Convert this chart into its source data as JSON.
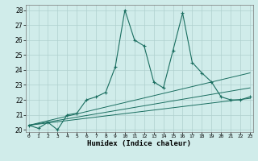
{
  "xlabel": "Humidex (Indice chaleur)",
  "xlim": [
    -0.3,
    23.3
  ],
  "ylim": [
    19.85,
    28.35
  ],
  "yticks": [
    20,
    21,
    22,
    23,
    24,
    25,
    26,
    27,
    28
  ],
  "xticks": [
    0,
    1,
    2,
    3,
    4,
    5,
    6,
    7,
    8,
    9,
    10,
    11,
    12,
    13,
    14,
    15,
    16,
    17,
    18,
    19,
    20,
    21,
    22,
    23
  ],
  "bg_color": "#d0ecea",
  "grid_color": "#b0d0ce",
  "line_color": "#1a6e60",
  "series_main_x": [
    0,
    1,
    2,
    3,
    4,
    5,
    6,
    7,
    8,
    9,
    10,
    11,
    12,
    13,
    14,
    15,
    16,
    17,
    18,
    19,
    20,
    21,
    22,
    23
  ],
  "series_main_y": [
    20.3,
    20.1,
    20.5,
    20.0,
    21.0,
    21.1,
    22.0,
    22.2,
    22.5,
    24.2,
    28.0,
    26.0,
    25.6,
    23.2,
    22.8,
    25.3,
    27.8,
    24.5,
    23.8,
    23.2,
    22.2,
    22.0,
    22.0,
    22.2
  ],
  "trend_lines": [
    {
      "x": [
        0,
        23
      ],
      "y": [
        20.3,
        23.8
      ]
    },
    {
      "x": [
        0,
        23
      ],
      "y": [
        20.3,
        22.8
      ]
    },
    {
      "x": [
        0,
        23
      ],
      "y": [
        20.3,
        22.1
      ]
    }
  ]
}
